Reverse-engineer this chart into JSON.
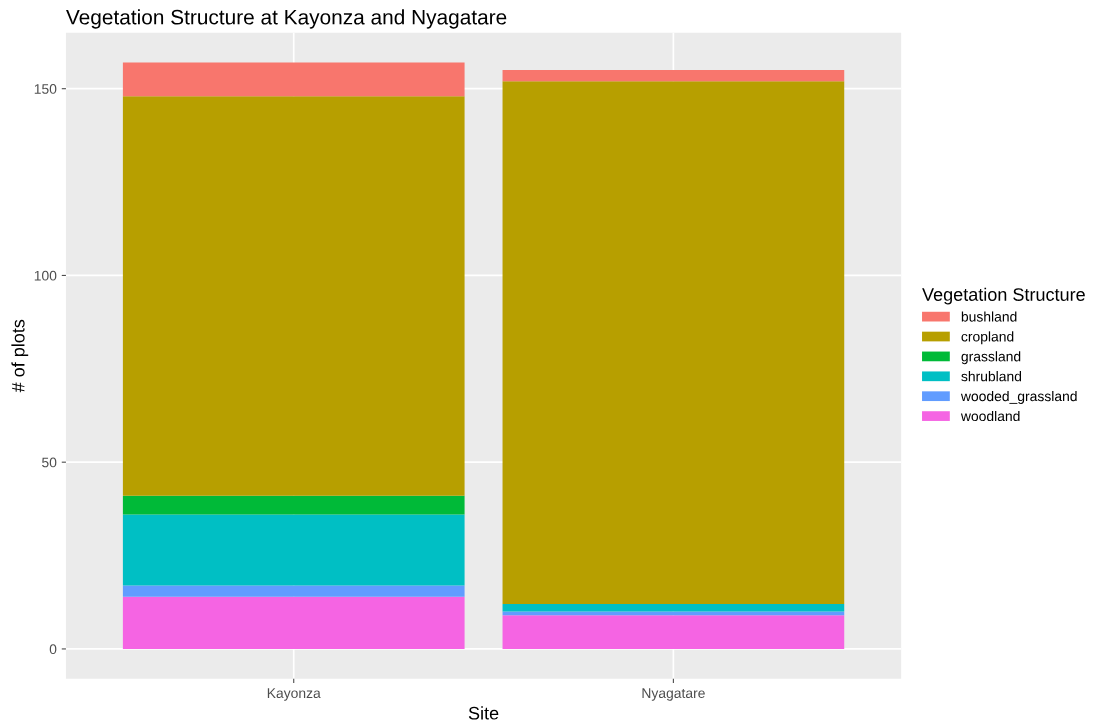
{
  "chart_data": {
    "type": "bar",
    "stacked": true,
    "title": "Vegetation Structure at Kayonza and Nyagatare",
    "xlabel": "Site",
    "ylabel": "# of plots",
    "legend_title": "Vegetation Structure",
    "legend": "right",
    "categories": [
      "Kayonza",
      "Nyagatare"
    ],
    "series": [
      {
        "name": "woodland",
        "color": "#f564e3",
        "values": [
          14,
          9
        ]
      },
      {
        "name": "wooded_grassland",
        "color": "#619cff",
        "values": [
          3,
          1
        ]
      },
      {
        "name": "shrubland",
        "color": "#00bfc4",
        "values": [
          19,
          2
        ]
      },
      {
        "name": "grassland",
        "color": "#00ba38",
        "values": [
          5,
          0
        ]
      },
      {
        "name": "cropland",
        "color": "#b79f00",
        "values": [
          107,
          140
        ]
      },
      {
        "name": "bushland",
        "color": "#f8766d",
        "values": [
          9,
          3
        ]
      }
    ],
    "ylim": [
      -8,
      165
    ],
    "yticks": [
      0,
      50,
      100,
      150
    ],
    "grid": true
  }
}
